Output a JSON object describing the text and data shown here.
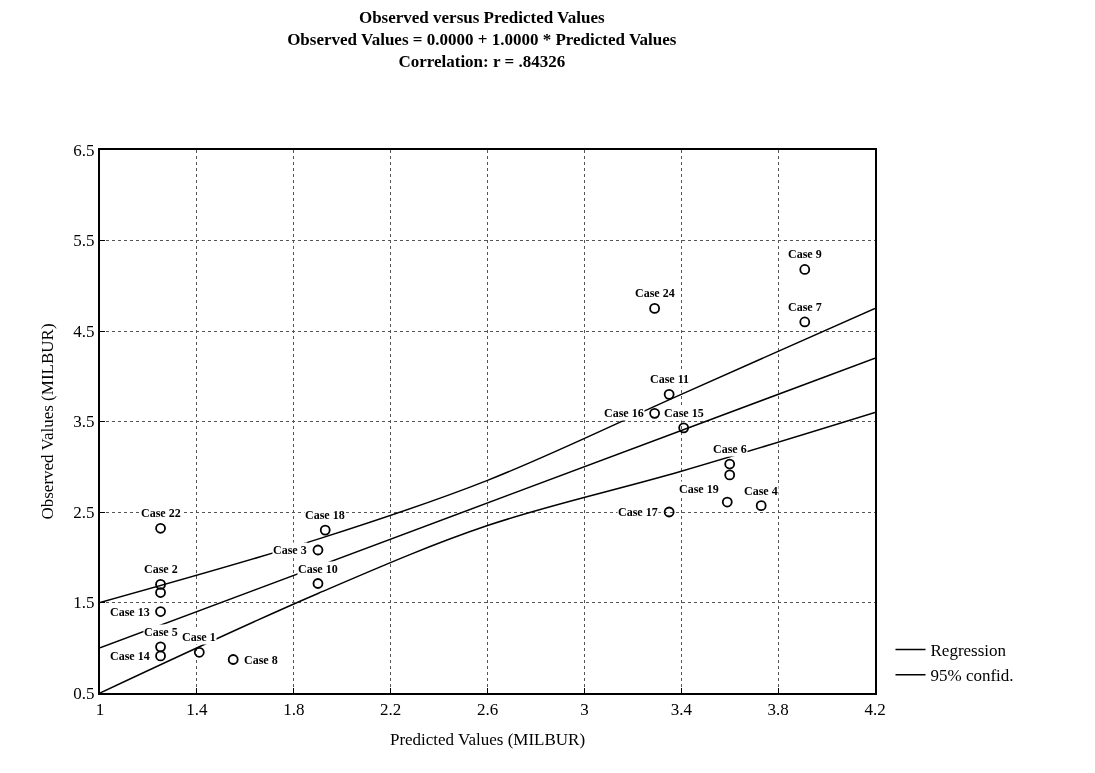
{
  "chart_data": {
    "type": "scatter",
    "title": "Observed versus Predicted Values",
    "subtitle": "Observed Values = 0.0000 + 1.0000 * Predicted Values\nCorrelation: r = .84326",
    "xlabel": "Predicted Values (MILBUR)",
    "ylabel": "Observed Values (MILBUR)",
    "xlim": [
      1,
      4.2
    ],
    "ylim": [
      0.5,
      6.5
    ],
    "xticks": [
      1,
      1.4,
      1.8,
      2.2,
      2.6,
      3,
      3.4,
      3.8,
      4.2
    ],
    "yticks": [
      0.5,
      1.5,
      2.5,
      3.5,
      4.5,
      5.5,
      6.5
    ],
    "grid": true,
    "legend": "bottom right",
    "series": [
      {
        "marker": "circle",
        "color": "#000000",
        "x": [
          1.25,
          1.25,
          1.25,
          1.25,
          1.25,
          1.25,
          1.41,
          1.55,
          1.9,
          1.93,
          1.9,
          3.29,
          3.35,
          3.29,
          3.41,
          3.6,
          3.6,
          3.59,
          3.73,
          3.35,
          3.91,
          3.91
        ],
        "values": [
          2.32,
          1.7,
          1.61,
          1.4,
          1.01,
          0.91,
          0.95,
          0.87,
          2.08,
          2.3,
          1.71,
          4.75,
          3.8,
          3.59,
          3.43,
          3.03,
          2.91,
          2.61,
          2.57,
          2.5,
          5.18,
          4.6
        ]
      },
      {
        "type": "line",
        "name": "Regression",
        "marker": "none",
        "line_style": "solid",
        "color": "#000000",
        "x": [
          1,
          4.2
        ],
        "values": [
          1,
          4.2
        ]
      },
      {
        "type": "line",
        "name": "95% confid.",
        "marker": "none",
        "line_style": "solid",
        "color": "#000000",
        "x": [
          1,
          1.9,
          2.6,
          3.4,
          4.2
        ],
        "values": [
          1.5,
          2.2,
          2.85,
          3.8,
          4.75
        ]
      },
      {
        "type": "line",
        "marker": "none",
        "line_style": "solid",
        "color": "#000000",
        "x": [
          1,
          1.9,
          2.6,
          3.4,
          4.2
        ],
        "values": [
          0.5,
          1.6,
          2.35,
          2.95,
          3.6
        ]
      }
    ],
    "annotations": [
      {
        "text": "Case 22",
        "x": 1.25,
        "y": 2.32
      },
      {
        "text": "Case 2",
        "x": 1.25,
        "y": 1.7
      },
      {
        "text": "Case 13",
        "x": 1.25,
        "y": 1.4
      },
      {
        "text": "Case 5",
        "x": 1.25,
        "y": 1.01
      },
      {
        "text": "Case 14",
        "x": 1.25,
        "y": 0.91
      },
      {
        "text": "Case 1",
        "x": 1.41,
        "y": 0.95
      },
      {
        "text": "Case 8",
        "x": 1.55,
        "y": 0.87
      },
      {
        "text": "Case 3",
        "x": 1.9,
        "y": 2.08
      },
      {
        "text": "Case 18",
        "x": 1.93,
        "y": 2.3
      },
      {
        "text": "Case 10",
        "x": 1.9,
        "y": 1.71
      },
      {
        "text": "Case 24",
        "x": 3.29,
        "y": 4.75
      },
      {
        "text": "Case 11",
        "x": 3.35,
        "y": 3.8
      },
      {
        "text": "Case 16",
        "x": 3.29,
        "y": 3.59
      },
      {
        "text": "Case 15",
        "x": 3.41,
        "y": 3.43
      },
      {
        "text": "Case 6",
        "x": 3.6,
        "y": 3.03
      },
      {
        "text": "Case 19",
        "x": 3.59,
        "y": 2.61
      },
      {
        "text": "Case 4",
        "x": 3.73,
        "y": 2.57
      },
      {
        "text": "Case 17",
        "x": 3.35,
        "y": 2.5
      },
      {
        "text": "Case 9",
        "x": 3.91,
        "y": 5.18
      },
      {
        "text": "Case 7",
        "x": 3.91,
        "y": 4.6
      }
    ]
  }
}
